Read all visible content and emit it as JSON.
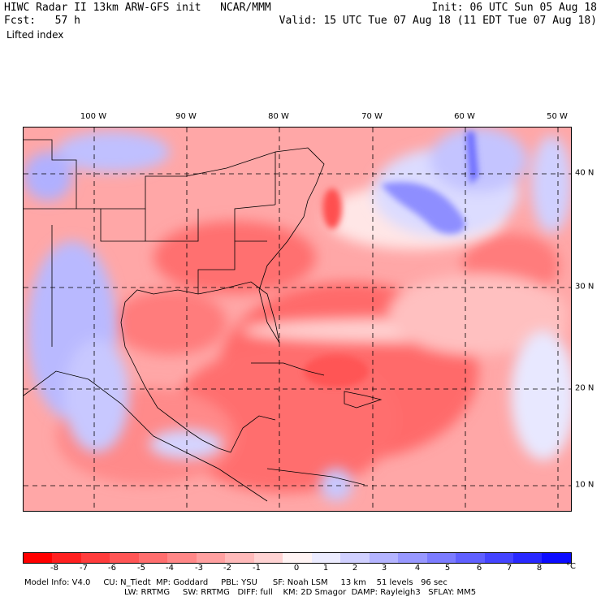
{
  "header": {
    "title": "HIWC Radar II 13km ARW-GFS init   NCAR/MMM",
    "forecast": "Fcst:   57 h",
    "init": "Init: 06 UTC Sun 05 Aug 18",
    "valid": "Valid: 15 UTC Tue 07 Aug 18 (11 EDT Tue 07 Aug 18)",
    "field": "Lifted index"
  },
  "map": {
    "lon_labels": [
      "100 W",
      "90 W",
      "80 W",
      "70 W",
      "60 W",
      "50 W"
    ],
    "lat_labels": [
      "40 N",
      "30 N",
      "20 N",
      "10 N"
    ]
  },
  "colorbar": {
    "ticks": [
      "-8",
      "-7",
      "-6",
      "-5",
      "-4",
      "-3",
      "-2",
      "-1",
      "0",
      "1",
      "2",
      "3",
      "4",
      "5",
      "6",
      "7",
      "8"
    ],
    "unit": "°C",
    "colors": [
      "#ff0000",
      "#ff2020",
      "#ff3c3c",
      "#ff5555",
      "#ff6e6e",
      "#ff8787",
      "#ffa0a0",
      "#ffbaba",
      "#ffd3d3",
      "#fff4f4",
      "#ececff",
      "#d0d0ff",
      "#b4b4ff",
      "#9898ff",
      "#7c7cff",
      "#6060ff",
      "#4444ff",
      "#2828ff",
      "#0c0cff"
    ]
  },
  "footer": {
    "line1": "Model Info: V4.0     CU: N_Tiedt  MP: Goddard     PBL: YSU      SF: Noah LSM     13 km    51 levels   96 sec",
    "line2": "LW: RRTMG     SW: RRTMG   DIFF: full    KM: 2D Smagor  DAMP: Rayleigh3   SFLAY: MM5"
  }
}
